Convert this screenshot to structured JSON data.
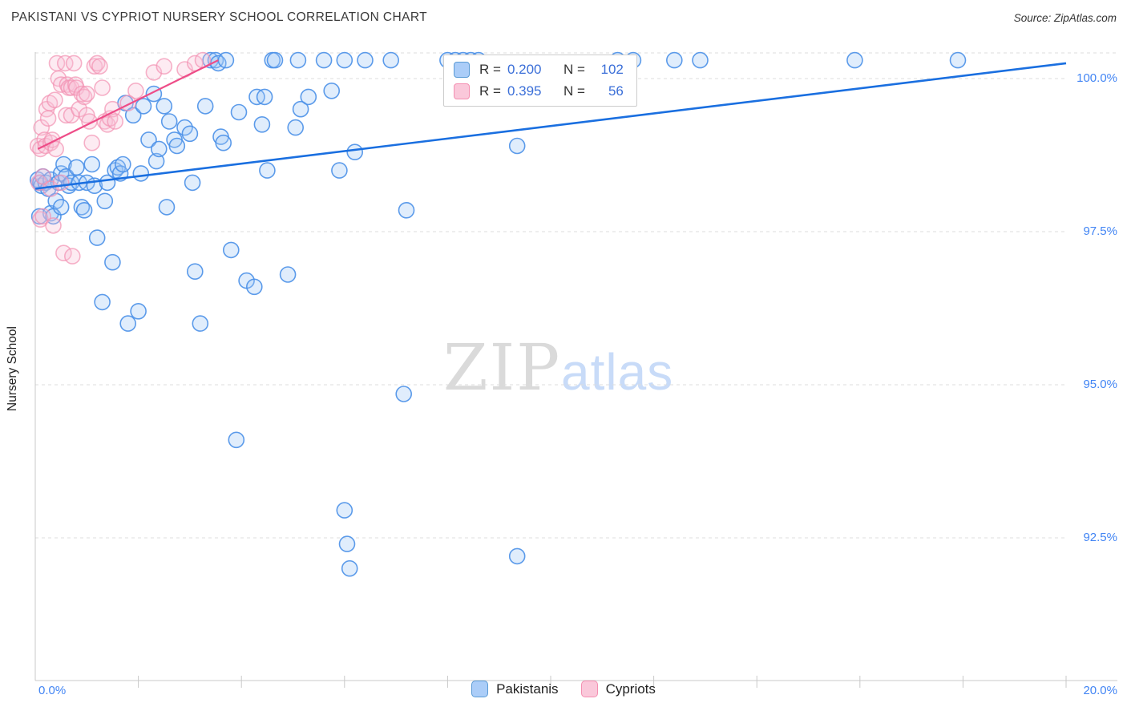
{
  "page": {
    "title": "PAKISTANI VS CYPRIOT NURSERY SCHOOL CORRELATION CHART",
    "source": "Source: ZipAtlas.com",
    "watermark_part1": "ZIP",
    "watermark_part2": "atlas"
  },
  "chart_data": {
    "type": "scatter",
    "title": "PAKISTANI VS CYPRIOT NURSERY SCHOOL CORRELATION CHART",
    "xlabel": "",
    "ylabel": "Nursery School",
    "x_range_pct": [
      0,
      20
    ],
    "y_range_pct": [
      90.2,
      100.45
    ],
    "x_tick_labels": [
      "0.0%",
      "20.0%"
    ],
    "y_gridlines_pct": [
      100.0,
      97.5,
      95.0,
      92.5
    ],
    "y_tick_labels": [
      "100.0%",
      "97.5%",
      "95.0%",
      "92.5%"
    ],
    "grid": "dashed-horizontal",
    "legend_position": "top-center and bottom-center",
    "legend_box": {
      "rows": [
        {
          "series": "Pakistanis",
          "r_label": "R =",
          "r_value": "0.200",
          "n_label": "N =",
          "n_value": "102"
        },
        {
          "series": "Cypriots",
          "r_label": "R =",
          "r_value": "0.395",
          "n_label": "N =",
          "n_value": "56"
        }
      ]
    },
    "series": [
      {
        "name": "Pakistanis",
        "R": 0.2,
        "N": 102,
        "stroke": "#4a90e8",
        "fill": "#9ec7f7",
        "trend_color": "#1a6fe0",
        "trend": {
          "x": [
            0.0,
            20.0
          ],
          "y": [
            98.2,
            100.25
          ]
        },
        "points": [
          [
            0.05,
            98.35
          ],
          [
            0.08,
            97.75
          ],
          [
            0.1,
            98.3
          ],
          [
            0.12,
            98.25
          ],
          [
            0.15,
            98.4
          ],
          [
            0.2,
            98.3
          ],
          [
            0.25,
            98.2
          ],
          [
            0.3,
            98.35
          ],
          [
            0.3,
            97.8
          ],
          [
            0.35,
            97.75
          ],
          [
            0.4,
            98.0
          ],
          [
            0.45,
            98.3
          ],
          [
            0.5,
            98.45
          ],
          [
            0.5,
            97.9
          ],
          [
            0.55,
            98.6
          ],
          [
            0.6,
            98.4
          ],
          [
            0.65,
            98.25
          ],
          [
            0.7,
            98.3
          ],
          [
            0.8,
            98.55
          ],
          [
            0.85,
            98.3
          ],
          [
            0.9,
            97.9
          ],
          [
            0.95,
            97.85
          ],
          [
            1.0,
            98.3
          ],
          [
            1.1,
            98.6
          ],
          [
            1.15,
            98.25
          ],
          [
            1.2,
            97.4
          ],
          [
            1.3,
            96.35
          ],
          [
            1.35,
            98.0
          ],
          [
            1.4,
            98.3
          ],
          [
            1.5,
            97.0
          ],
          [
            1.55,
            98.5
          ],
          [
            1.6,
            98.55
          ],
          [
            1.65,
            98.45
          ],
          [
            1.7,
            98.6
          ],
          [
            1.75,
            99.6
          ],
          [
            1.8,
            96.0
          ],
          [
            1.9,
            99.4
          ],
          [
            2.0,
            96.2
          ],
          [
            2.05,
            98.45
          ],
          [
            2.1,
            99.55
          ],
          [
            2.2,
            99.0
          ],
          [
            2.3,
            99.75
          ],
          [
            2.35,
            98.65
          ],
          [
            2.4,
            98.85
          ],
          [
            2.5,
            99.55
          ],
          [
            2.55,
            97.9
          ],
          [
            2.6,
            99.3
          ],
          [
            2.7,
            99.0
          ],
          [
            2.75,
            98.9
          ],
          [
            2.9,
            99.2
          ],
          [
            3.0,
            99.1
          ],
          [
            3.05,
            98.3
          ],
          [
            3.1,
            96.85
          ],
          [
            3.2,
            96.0
          ],
          [
            3.3,
            99.55
          ],
          [
            3.4,
            100.3
          ],
          [
            3.5,
            100.3
          ],
          [
            3.55,
            100.25
          ],
          [
            3.6,
            99.05
          ],
          [
            3.65,
            98.95
          ],
          [
            3.7,
            100.3
          ],
          [
            3.8,
            97.2
          ],
          [
            3.9,
            94.1
          ],
          [
            3.95,
            99.45
          ],
          [
            4.1,
            96.7
          ],
          [
            4.25,
            96.6
          ],
          [
            4.3,
            99.7
          ],
          [
            4.45,
            99.7
          ],
          [
            4.4,
            99.25
          ],
          [
            4.5,
            98.5
          ],
          [
            4.6,
            100.3
          ],
          [
            4.65,
            100.3
          ],
          [
            4.9,
            96.8
          ],
          [
            5.05,
            99.2
          ],
          [
            5.1,
            100.3
          ],
          [
            5.15,
            99.5
          ],
          [
            5.3,
            99.7
          ],
          [
            5.6,
            100.3
          ],
          [
            5.75,
            99.8
          ],
          [
            5.9,
            98.5
          ],
          [
            6.0,
            100.3
          ],
          [
            6.0,
            92.95
          ],
          [
            6.05,
            92.4
          ],
          [
            6.1,
            92.0
          ],
          [
            6.2,
            98.8
          ],
          [
            6.4,
            100.3
          ],
          [
            6.9,
            100.3
          ],
          [
            7.2,
            97.85
          ],
          [
            7.15,
            94.85
          ],
          [
            8.0,
            100.3
          ],
          [
            8.15,
            100.3
          ],
          [
            8.3,
            100.3
          ],
          [
            8.45,
            100.3
          ],
          [
            8.6,
            100.3
          ],
          [
            9.35,
            98.9
          ],
          [
            9.35,
            92.2
          ],
          [
            11.3,
            100.3
          ],
          [
            11.6,
            100.3
          ],
          [
            12.4,
            100.3
          ],
          [
            12.9,
            100.3
          ],
          [
            15.9,
            100.3
          ],
          [
            17.9,
            100.3
          ]
        ]
      },
      {
        "name": "Cypriots",
        "R": 0.395,
        "N": 56,
        "stroke": "#f291b2",
        "fill": "#f9c2d6",
        "trend_color": "#ee4d88",
        "trend": {
          "x": [
            0.05,
            3.55
          ],
          "y": [
            98.85,
            100.3
          ]
        },
        "points": [
          [
            0.05,
            98.9
          ],
          [
            0.07,
            98.3
          ],
          [
            0.1,
            98.85
          ],
          [
            0.1,
            97.7
          ],
          [
            0.12,
            99.2
          ],
          [
            0.15,
            98.4
          ],
          [
            0.15,
            97.75
          ],
          [
            0.18,
            99.0
          ],
          [
            0.2,
            98.9
          ],
          [
            0.22,
            99.5
          ],
          [
            0.25,
            99.35
          ],
          [
            0.28,
            99.6
          ],
          [
            0.3,
            98.95
          ],
          [
            0.3,
            98.2
          ],
          [
            0.33,
            99.0
          ],
          [
            0.35,
            97.6
          ],
          [
            0.38,
            99.65
          ],
          [
            0.4,
            98.85
          ],
          [
            0.42,
            100.25
          ],
          [
            0.45,
            100.0
          ],
          [
            0.5,
            99.9
          ],
          [
            0.5,
            98.3
          ],
          [
            0.55,
            97.15
          ],
          [
            0.58,
            100.25
          ],
          [
            0.6,
            99.4
          ],
          [
            0.62,
            99.9
          ],
          [
            0.65,
            99.85
          ],
          [
            0.7,
            99.85
          ],
          [
            0.7,
            99.4
          ],
          [
            0.72,
            97.1
          ],
          [
            0.75,
            100.25
          ],
          [
            0.78,
            99.9
          ],
          [
            0.8,
            99.85
          ],
          [
            0.85,
            99.5
          ],
          [
            0.9,
            99.75
          ],
          [
            0.95,
            99.7
          ],
          [
            1.0,
            99.75
          ],
          [
            1.0,
            99.4
          ],
          [
            1.05,
            99.3
          ],
          [
            1.1,
            98.95
          ],
          [
            1.15,
            100.2
          ],
          [
            1.2,
            100.25
          ],
          [
            1.25,
            100.2
          ],
          [
            1.3,
            99.85
          ],
          [
            1.35,
            99.3
          ],
          [
            1.4,
            99.25
          ],
          [
            1.45,
            99.35
          ],
          [
            1.5,
            99.5
          ],
          [
            1.55,
            99.3
          ],
          [
            1.8,
            99.6
          ],
          [
            1.95,
            99.8
          ],
          [
            2.3,
            100.1
          ],
          [
            2.5,
            100.2
          ],
          [
            2.9,
            100.15
          ],
          [
            3.1,
            100.25
          ],
          [
            3.25,
            100.3
          ]
        ]
      }
    ],
    "colors": {
      "axis": "#c9c9c9",
      "grid": "#dcdcdc",
      "tick_label": "#4285f4"
    }
  }
}
